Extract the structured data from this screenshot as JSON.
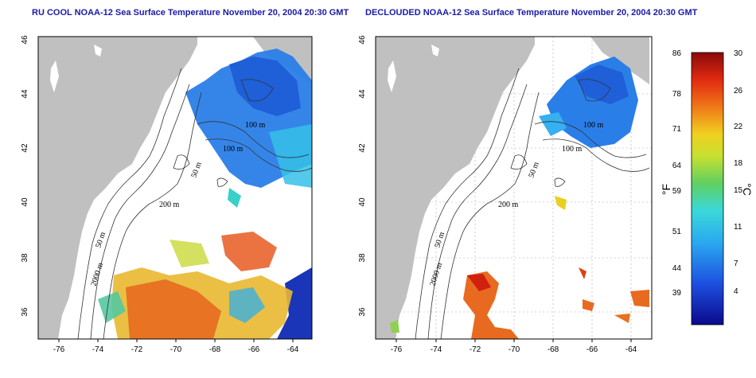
{
  "maps": [
    {
      "id": "left",
      "title": "RU COOL NOAA-12 Sea Surface Temperature November 20, 2004 20:30 GMT",
      "x_ticks": [
        "-76",
        "-74",
        "-72",
        "-70",
        "-68",
        "-66",
        "-64"
      ],
      "y_ticks": [
        "46",
        "44",
        "42",
        "40",
        "38",
        "36"
      ],
      "contour_labels": [
        "100 m",
        "100 m",
        "50 m",
        "200 m",
        "50 m",
        "2000 m"
      ]
    },
    {
      "id": "right",
      "title": "DECLOUDED NOAA-12 Sea Surface Temperature November 20, 2004 20:30 GMT",
      "x_ticks": [
        "-76",
        "-74",
        "-72",
        "-70",
        "-68",
        "-66",
        "-64"
      ],
      "y_ticks": [
        "46",
        "44",
        "42",
        "40",
        "38",
        "36"
      ],
      "contour_labels": [
        "100 m",
        "100 m",
        "50 m",
        "200 m",
        "50 m",
        "2000 m"
      ]
    }
  ],
  "colorbar": {
    "fahrenheit_ticks": [
      "86",
      "78",
      "71",
      "64",
      "59",
      "51",
      "44",
      "39"
    ],
    "celsius_ticks": [
      "30",
      "26",
      "22",
      "18",
      "15",
      "11",
      "7",
      "4"
    ],
    "fahrenheit_unit": "°F",
    "celsius_unit": "°C"
  },
  "colors": {
    "land": "#c0c0c0",
    "title": "#1a1aa8",
    "sst_cold": "#0a1a9a",
    "sst_mid": "#3ad0d0",
    "sst_warm": "#a01010"
  }
}
